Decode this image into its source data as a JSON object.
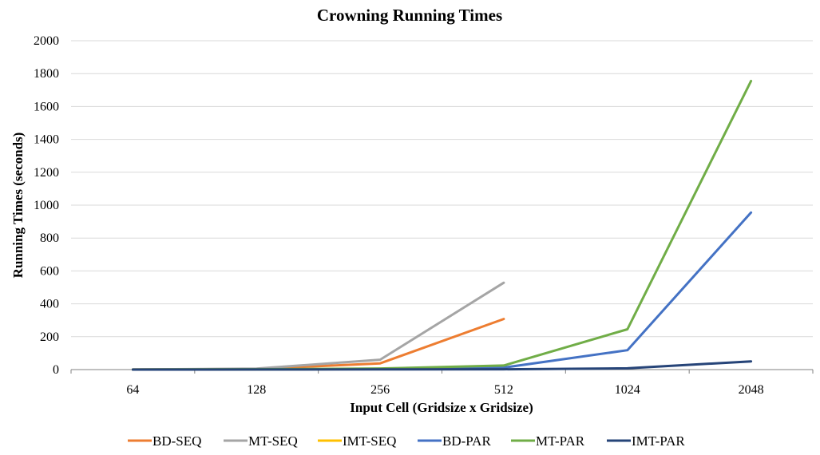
{
  "chart_data": {
    "type": "line",
    "title": "Crowning Running Times",
    "xlabel": "Input Cell (Gridsize x Gridsize)",
    "ylabel": "Running Times  (seconds)",
    "categories": [
      "64",
      "128",
      "256",
      "512",
      "1024",
      "2048"
    ],
    "ylim": [
      0,
      2000
    ],
    "yticks": [
      0,
      200,
      400,
      600,
      800,
      1000,
      1200,
      1400,
      1600,
      1800,
      2000
    ],
    "grid": true,
    "legend_position": "bottom",
    "series": [
      {
        "name": "BD-SEQ",
        "color": "#ed7d31",
        "values": [
          0.5,
          4,
          38,
          308,
          null,
          null
        ]
      },
      {
        "name": "MT-SEQ",
        "color": "#a5a5a5",
        "values": [
          0.5,
          6,
          60,
          528,
          null,
          null
        ]
      },
      {
        "name": "IMT-SEQ",
        "color": "#ffc000",
        "values": [
          0.2,
          1,
          3,
          10,
          null,
          null
        ]
      },
      {
        "name": "BD-PAR",
        "color": "#4472c4",
        "values": [
          0.2,
          1,
          4,
          12,
          118,
          955
        ]
      },
      {
        "name": "MT-PAR",
        "color": "#70ad47",
        "values": [
          0.3,
          2,
          7,
          25,
          245,
          1755
        ]
      },
      {
        "name": "IMT-PAR",
        "color": "#264478",
        "values": [
          0.1,
          0.5,
          1,
          2,
          8,
          50
        ]
      }
    ]
  }
}
